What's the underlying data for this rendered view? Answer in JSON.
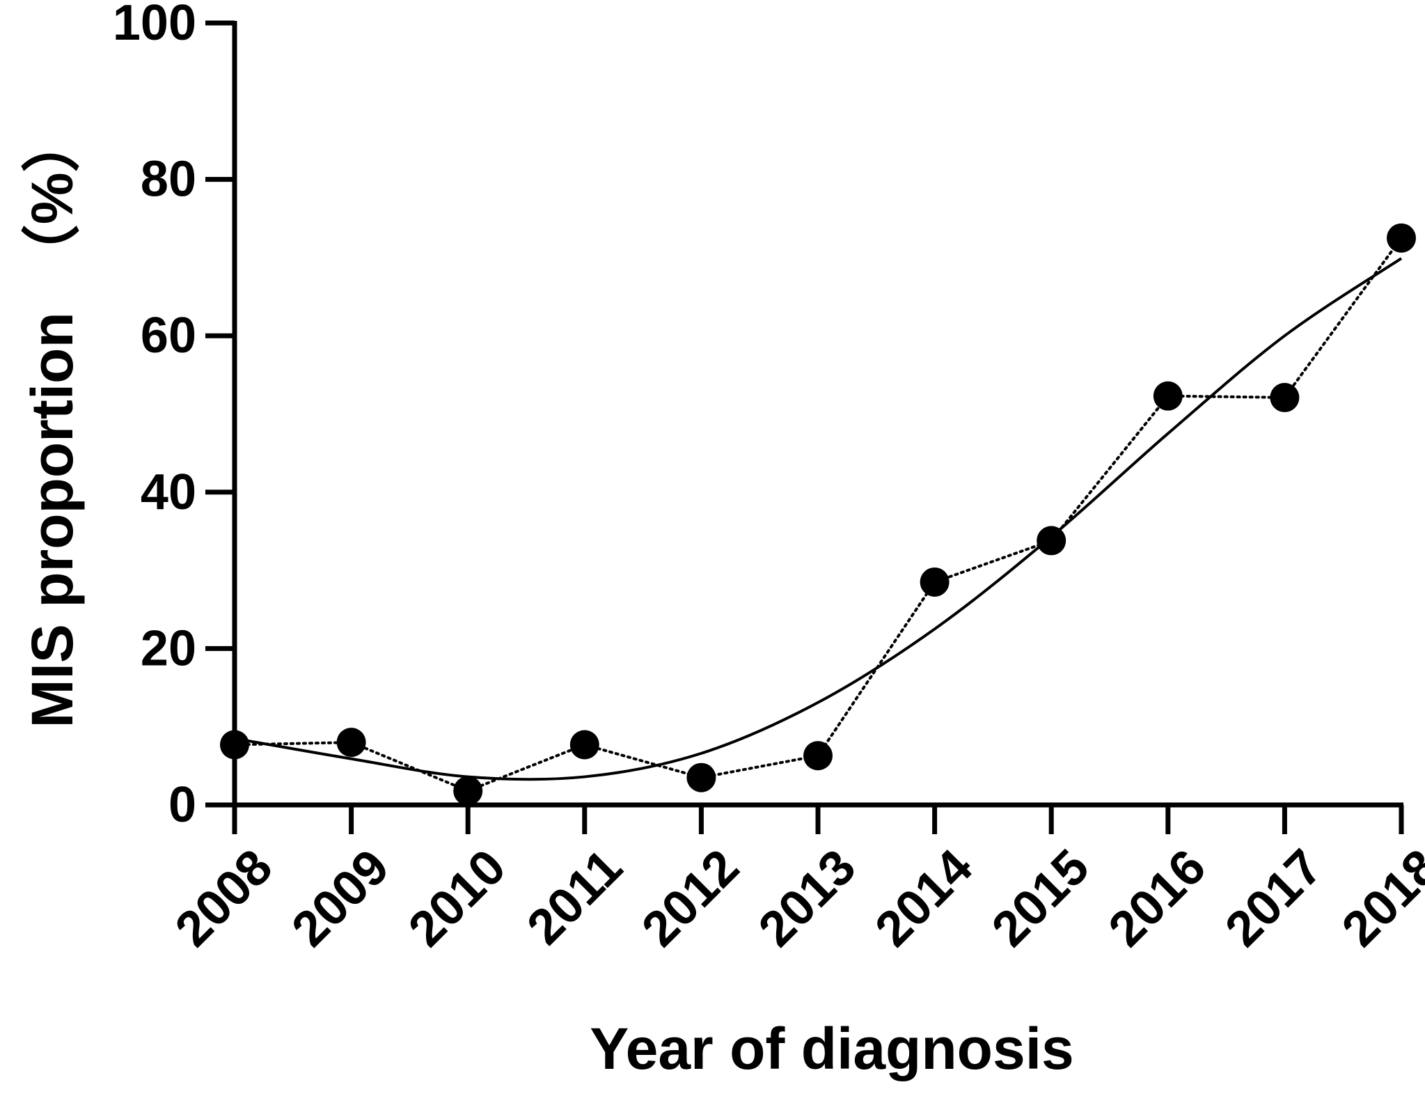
{
  "chart_data": {
    "type": "scatter",
    "title": "",
    "xlabel": "Year of diagnosis",
    "ylabel": "MIS proportion　（%）",
    "categories": [
      "2008",
      "2009",
      "2010",
      "2011",
      "2012",
      "2013",
      "2014",
      "2015",
      "2016",
      "2017",
      "2018"
    ],
    "ylim": [
      0,
      100
    ],
    "yticks": [
      "0",
      "20",
      "40",
      "60",
      "80",
      "100"
    ],
    "grid": false,
    "legend": "none",
    "series": [
      {
        "kind": "points-dotted",
        "values": [
          7.7,
          8.0,
          1.8,
          7.7,
          3.5,
          6.3,
          28.5,
          33.8,
          52.3,
          52.1,
          72.5
        ]
      },
      {
        "kind": "trend-curve",
        "values": [
          8.5,
          5.9,
          3.6,
          3.6,
          6.6,
          13.1,
          22.5,
          34.3,
          47.5,
          60.0,
          69.9
        ]
      }
    ],
    "colors": {
      "axis": "#000000",
      "points": "#000000",
      "lines": "#000000"
    }
  }
}
